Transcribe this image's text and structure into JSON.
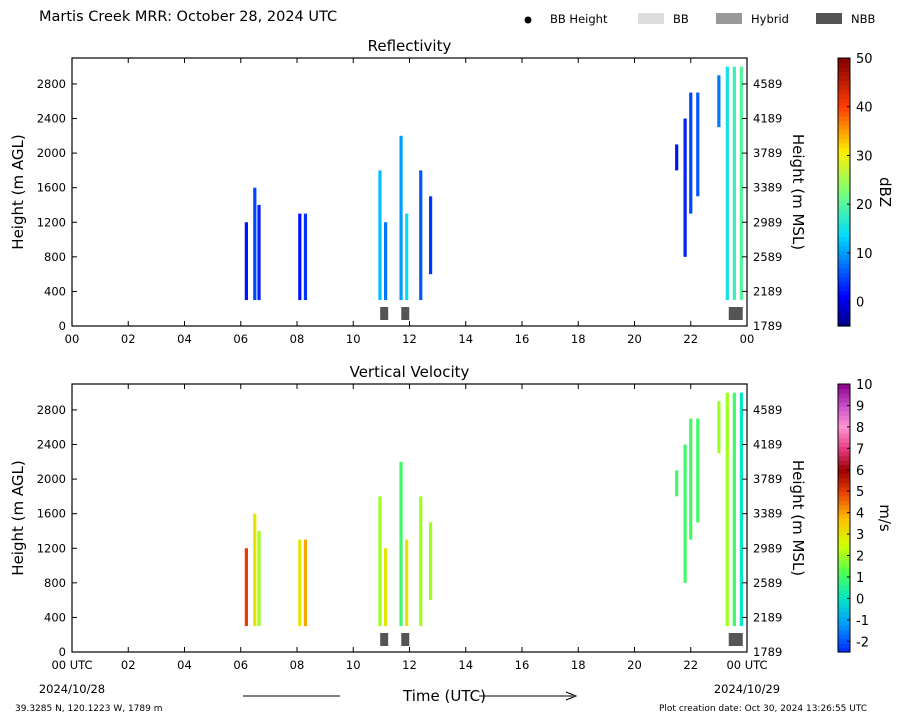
{
  "header": {
    "title": "Martis Creek MRR:  October 28, 2024 UTC",
    "legend": [
      {
        "label": "BB Height",
        "color": "#000000",
        "shape": "dot"
      },
      {
        "label": "BB",
        "color": "#dddddd",
        "shape": "box"
      },
      {
        "label": "Hybrid",
        "color": "#999999",
        "shape": "box"
      },
      {
        "label": "NBB",
        "color": "#555555",
        "shape": "box"
      }
    ]
  },
  "footer": {
    "location": "39.3285 N, 120.1223 W, 1789 m",
    "created": "Plot creation date: Oct 30, 2024 13:26:55 UTC"
  },
  "chart_data": [
    {
      "type": "heatmap",
      "title": "Reflectivity",
      "ylabel": "Height (m AGL)",
      "ylabel_right": "Height (m MSL)",
      "xlim": [
        0,
        24
      ],
      "ylim": [
        0,
        3100
      ],
      "x_ticks": [
        "00",
        "02",
        "04",
        "06",
        "08",
        "10",
        "12",
        "14",
        "16",
        "18",
        "20",
        "22",
        "00"
      ],
      "y_ticks": [
        "0",
        "400",
        "800",
        "1200",
        "1600",
        "2000",
        "2400",
        "2800"
      ],
      "y_ticks_right": [
        "1789",
        "2189",
        "2589",
        "2989",
        "3389",
        "3789",
        "4189",
        "4589"
      ],
      "colorbar": {
        "label": "dBZ",
        "min": -5,
        "max": 50,
        "ticks": [
          "0",
          "10",
          "20",
          "30",
          "40",
          "50"
        ],
        "tick_values": [
          0,
          10,
          20,
          30,
          40,
          50
        ]
      },
      "columns": [
        {
          "t": 6.2,
          "y0": 300,
          "y1": 1200,
          "v": 2
        },
        {
          "t": 6.5,
          "y0": 300,
          "y1": 1600,
          "v": 5
        },
        {
          "t": 6.65,
          "y0": 300,
          "y1": 1400,
          "v": 3
        },
        {
          "t": 8.1,
          "y0": 300,
          "y1": 1300,
          "v": 2
        },
        {
          "t": 8.3,
          "y0": 300,
          "y1": 1300,
          "v": 4
        },
        {
          "t": 10.95,
          "y0": 300,
          "y1": 1800,
          "v": 12
        },
        {
          "t": 11.15,
          "y0": 300,
          "y1": 1200,
          "v": 8
        },
        {
          "t": 11.7,
          "y0": 300,
          "y1": 2200,
          "v": 10
        },
        {
          "t": 11.9,
          "y0": 300,
          "y1": 1300,
          "v": 14
        },
        {
          "t": 12.4,
          "y0": 300,
          "y1": 1800,
          "v": 6
        },
        {
          "t": 12.75,
          "y0": 600,
          "y1": 1500,
          "v": 4
        },
        {
          "t": 21.5,
          "y0": 1800,
          "y1": 2100,
          "v": 2
        },
        {
          "t": 21.8,
          "y0": 800,
          "y1": 2400,
          "v": 3
        },
        {
          "t": 22.0,
          "y0": 1300,
          "y1": 2700,
          "v": 5
        },
        {
          "t": 22.25,
          "y0": 1500,
          "y1": 2700,
          "v": 6
        },
        {
          "t": 23.0,
          "y0": 2300,
          "y1": 2900,
          "v": 8
        },
        {
          "t": 23.3,
          "y0": 300,
          "y1": 3000,
          "v": 15
        },
        {
          "t": 23.55,
          "y0": 300,
          "y1": 3000,
          "v": 18
        },
        {
          "t": 23.8,
          "y0": 300,
          "y1": 3000,
          "v": 20
        }
      ],
      "bb_markers": [
        {
          "t": 11.1,
          "type": "NBB"
        },
        {
          "t": 11.85,
          "type": "NBB"
        },
        {
          "t": 23.6,
          "type": "NBB"
        }
      ]
    },
    {
      "type": "heatmap",
      "title": "Vertical Velocity",
      "ylabel": "Height (m AGL)",
      "ylabel_right": "Height (m MSL)",
      "xlabel": "Time (UTC)",
      "xlim": [
        0,
        24
      ],
      "ylim": [
        0,
        3100
      ],
      "x_ticks": [
        "00 UTC",
        "02",
        "04",
        "06",
        "08",
        "10",
        "12",
        "14",
        "16",
        "18",
        "20",
        "22",
        "00 UTC"
      ],
      "x_sub": [
        "2024/10/28",
        "2024/10/29"
      ],
      "y_ticks": [
        "0",
        "400",
        "800",
        "1200",
        "1600",
        "2000",
        "2400",
        "2800"
      ],
      "y_ticks_right": [
        "1789",
        "2189",
        "2589",
        "2989",
        "3389",
        "3789",
        "4189",
        "4589"
      ],
      "colorbar": {
        "label": "m/s",
        "min": -2.5,
        "max": 10,
        "ticks": [
          "-2",
          "-1",
          "0",
          "1",
          "2",
          "3",
          "4",
          "5",
          "6",
          "7",
          "8",
          "9",
          "10"
        ],
        "tick_values": [
          -2,
          -1,
          0,
          1,
          2,
          3,
          4,
          5,
          6,
          7,
          8,
          9,
          10
        ]
      },
      "columns": [
        {
          "t": 6.2,
          "y0": 300,
          "y1": 1200,
          "v": 5
        },
        {
          "t": 6.5,
          "y0": 300,
          "y1": 1600,
          "v": 3
        },
        {
          "t": 6.65,
          "y0": 300,
          "y1": 1400,
          "v": 2
        },
        {
          "t": 8.1,
          "y0": 300,
          "y1": 1300,
          "v": 3
        },
        {
          "t": 8.3,
          "y0": 300,
          "y1": 1300,
          "v": 4
        },
        {
          "t": 10.95,
          "y0": 300,
          "y1": 1800,
          "v": 2
        },
        {
          "t": 11.15,
          "y0": 300,
          "y1": 1200,
          "v": 3
        },
        {
          "t": 11.7,
          "y0": 300,
          "y1": 2200,
          "v": 1
        },
        {
          "t": 11.9,
          "y0": 300,
          "y1": 1300,
          "v": 3
        },
        {
          "t": 12.4,
          "y0": 300,
          "y1": 1800,
          "v": 2
        },
        {
          "t": 12.75,
          "y0": 600,
          "y1": 1500,
          "v": 2
        },
        {
          "t": 21.5,
          "y0": 1800,
          "y1": 2100,
          "v": 1
        },
        {
          "t": 21.8,
          "y0": 800,
          "y1": 2400,
          "v": 1
        },
        {
          "t": 22.0,
          "y0": 1300,
          "y1": 2700,
          "v": 1
        },
        {
          "t": 22.25,
          "y0": 1500,
          "y1": 2700,
          "v": 1
        },
        {
          "t": 23.0,
          "y0": 2300,
          "y1": 2900,
          "v": 2
        },
        {
          "t": 23.3,
          "y0": 300,
          "y1": 3000,
          "v": 2
        },
        {
          "t": 23.55,
          "y0": 300,
          "y1": 3000,
          "v": 1
        },
        {
          "t": 23.8,
          "y0": 300,
          "y1": 3000,
          "v": 0
        }
      ],
      "bb_markers": [
        {
          "t": 11.1,
          "type": "NBB"
        },
        {
          "t": 11.85,
          "type": "NBB"
        },
        {
          "t": 23.6,
          "type": "NBB"
        }
      ]
    }
  ]
}
